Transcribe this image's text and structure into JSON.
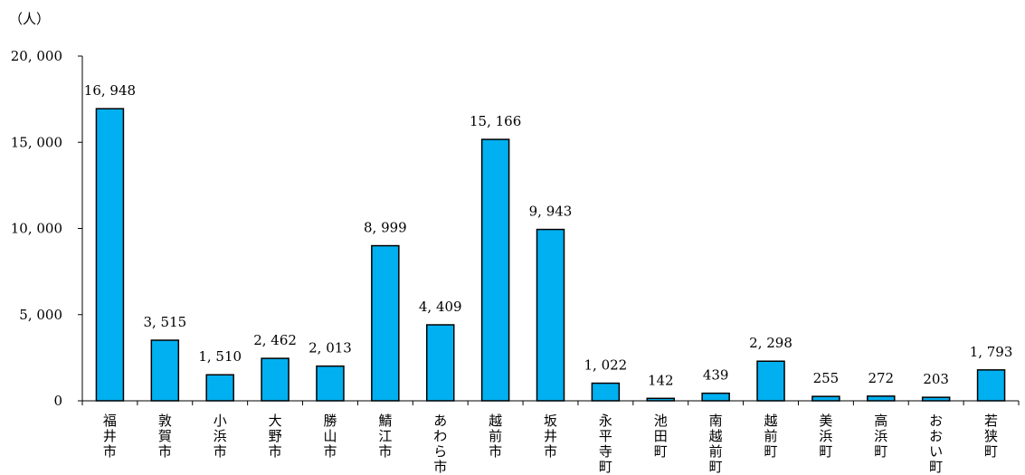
{
  "chart_data": {
    "type": "bar",
    "unit_label": "（人）",
    "categories": [
      "福井市",
      "敦賀市",
      "小浜市",
      "大野市",
      "勝山市",
      "鯖江市",
      "あわら市",
      "越前市",
      "坂井市",
      "永平寺町",
      "池田町",
      "南越前町",
      "越前町",
      "美浜町",
      "高浜町",
      "おおい町",
      "若狭町"
    ],
    "values": [
      16948,
      3515,
      1510,
      2462,
      2013,
      8999,
      4409,
      15166,
      9943,
      1022,
      142,
      439,
      2298,
      255,
      272,
      203,
      1793
    ],
    "value_labels": [
      "16, 948",
      "3, 515",
      "1, 510",
      "2, 462",
      "2, 013",
      "8, 999",
      "4, 409",
      "15, 166",
      "9, 943",
      "1, 022",
      "142",
      "439",
      "2, 298",
      "255",
      "272",
      "203",
      "1, 793"
    ],
    "yticks": [
      0,
      5000,
      10000,
      15000,
      20000
    ],
    "ytick_labels": [
      "0",
      "5, 000",
      "10, 000",
      "15, 000",
      "20, 000"
    ],
    "ylim": [
      0,
      20000
    ],
    "bar_color": "#00B0F0",
    "bar_edge_color": "#000000",
    "grid": false,
    "legend": "none"
  }
}
